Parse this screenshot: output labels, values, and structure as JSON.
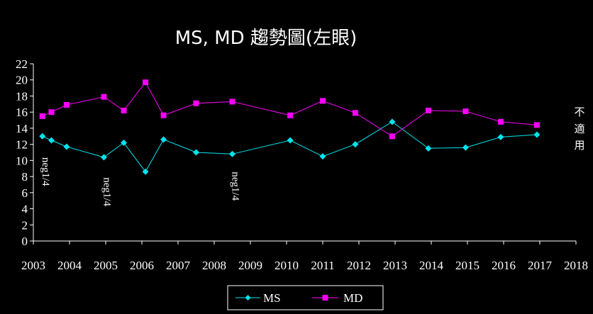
{
  "chart_data": {
    "type": "line",
    "title": "MS, MD 趨勢圖(左眼)",
    "xlabel": "",
    "ylabel": "",
    "xlim": [
      2003,
      2018
    ],
    "ylim": [
      0,
      22
    ],
    "x_ticks": [
      "2003",
      "2004",
      "2005",
      "2006",
      "2007",
      "2008",
      "2009",
      "2010",
      "2011",
      "2012",
      "2013",
      "2014",
      "2015",
      "2016",
      "2017",
      "2018"
    ],
    "y_ticks": [
      "0",
      "2",
      "4",
      "6",
      "8",
      "10",
      "12",
      "14",
      "16",
      "18",
      "20",
      "22"
    ],
    "grid": false,
    "legend_position": "bottom-center",
    "series": [
      {
        "name": "MS",
        "color": "#00e5ee",
        "marker": "diamond",
        "x": [
          2003.25,
          2003.5,
          2003.92,
          2004.95,
          2005.5,
          2006.1,
          2006.6,
          2007.5,
          2008.5,
          2010.1,
          2011.0,
          2011.9,
          2012.92,
          2013.92,
          2014.95,
          2015.92,
          2016.92
        ],
        "values": [
          13.0,
          12.5,
          11.7,
          10.4,
          12.2,
          8.6,
          12.6,
          11.0,
          10.8,
          12.5,
          10.5,
          12.0,
          14.8,
          11.5,
          11.6,
          12.9,
          13.2
        ]
      },
      {
        "name": "MD",
        "color": "#ff00ff",
        "marker": "square",
        "x": [
          2003.25,
          2003.5,
          2003.92,
          2004.95,
          2005.5,
          2006.1,
          2006.6,
          2007.5,
          2008.5,
          2010.1,
          2011.0,
          2011.9,
          2012.92,
          2013.92,
          2014.95,
          2015.92,
          2016.92
        ],
        "values": [
          15.5,
          16.0,
          16.9,
          17.9,
          16.2,
          19.7,
          15.6,
          17.1,
          17.3,
          15.6,
          17.4,
          15.9,
          13.0,
          16.2,
          16.1,
          14.8,
          14.4
        ]
      }
    ],
    "annotations": [
      {
        "text": "neg1/4",
        "x": 2003.25,
        "y": 10.4
      },
      {
        "text": "neg1/4",
        "x": 2004.95,
        "y": 7.9
      },
      {
        "text": "neg1/4",
        "x": 2008.5,
        "y": 8.6
      }
    ],
    "side_note": [
      "不",
      "適",
      "用"
    ]
  }
}
